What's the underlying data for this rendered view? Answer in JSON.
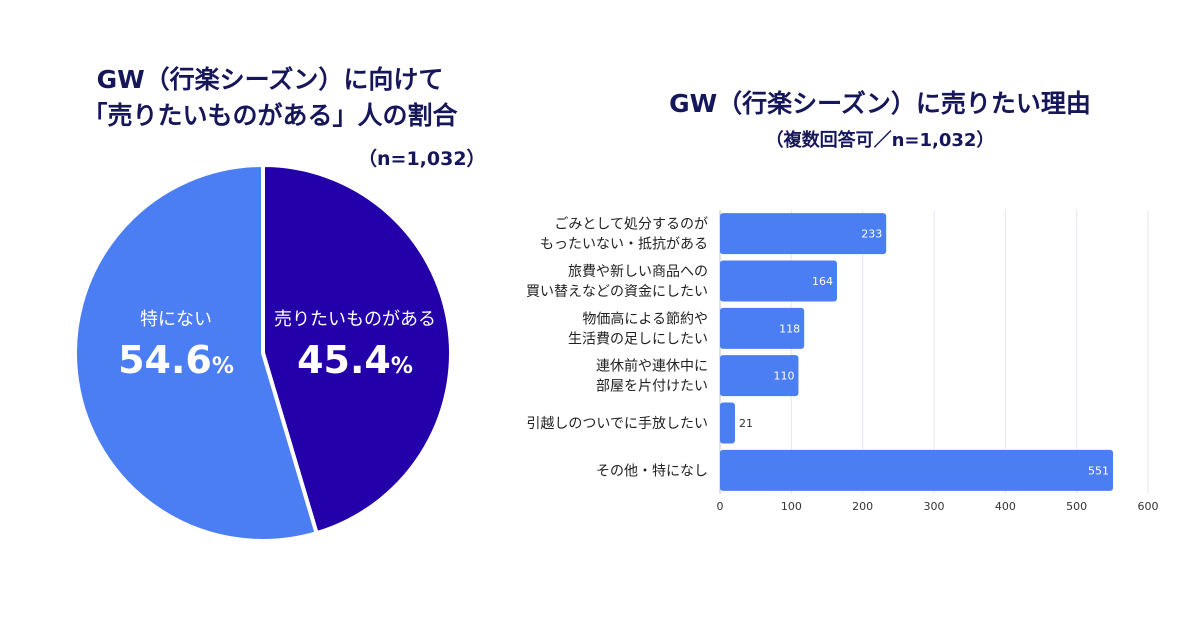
{
  "chart_data": [
    {
      "type": "pie",
      "title_line1": "GW（行楽シーズン）に向けて",
      "title_line2": "「売りたいものがある」人の割合",
      "note": "（n=1,032）",
      "slices": [
        {
          "label": "売りたいものがある",
          "value": 45.4,
          "display": "45.4",
          "unit": "%",
          "color": "#2300aa"
        },
        {
          "label": "特にない",
          "value": 54.6,
          "display": "54.6",
          "unit": "%",
          "color": "#4b7ef3"
        }
      ]
    },
    {
      "type": "bar",
      "orientation": "horizontal",
      "title": "GW（行楽シーズン）に売りたい理由",
      "subtitle": "（複数回答可／n=1,032）",
      "categories": [
        [
          "ごみとして処分するのが",
          "もったいない・抵抗がある"
        ],
        [
          "旅費や新しい商品への",
          "買い替えなどの資金にしたい"
        ],
        [
          "物価高による節約や",
          "生活費の足しにしたい"
        ],
        [
          "連休前や連休中に",
          "部屋を片付けたい"
        ],
        [
          "引越しのついでに手放したい"
        ],
        [
          "その他・特になし"
        ]
      ],
      "values": [
        233,
        164,
        118,
        110,
        21,
        551
      ],
      "xlim": [
        0,
        600
      ],
      "xticks": [
        0,
        100,
        200,
        300,
        400,
        500,
        600
      ],
      "bar_color": "#4b7ef3",
      "grid": true
    }
  ]
}
